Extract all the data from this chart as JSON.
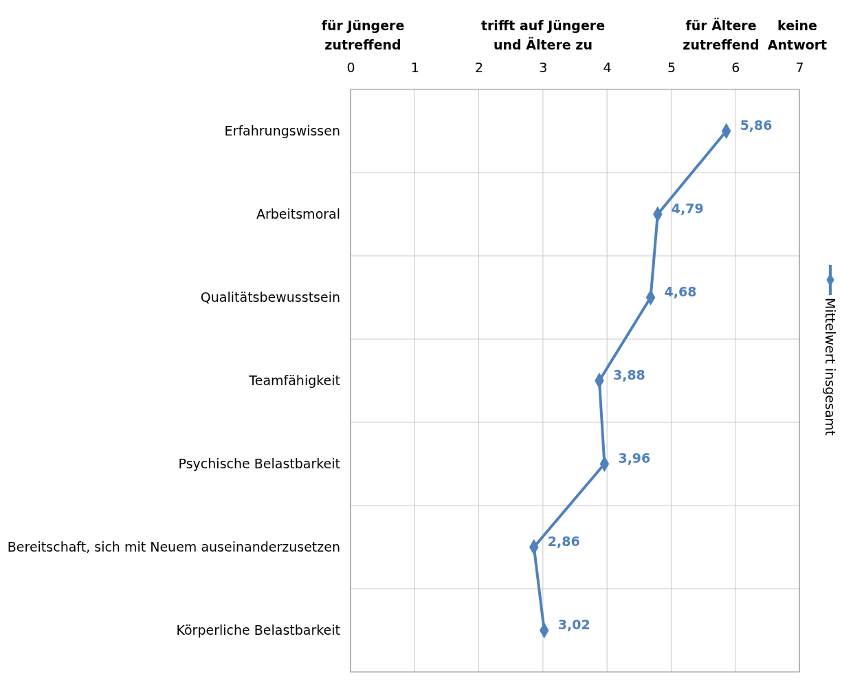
{
  "chart_data": {
    "type": "line",
    "orientation": "horizontal",
    "categories": [
      "Erfahrungswissen",
      "Arbeitsmoral",
      "Qualitätsbewusstsein",
      "Teamfähigkeit",
      "Psychische Belastbarkeit",
      "Bereitschaft, sich mit Neuem auseinanderzusetzen",
      "Körperliche Belastbarkeit"
    ],
    "series": [
      {
        "name": "Mittelwert insgesamt",
        "color": "#4f81bd",
        "values": [
          5.86,
          4.79,
          4.68,
          3.88,
          3.96,
          2.86,
          3.02
        ],
        "value_labels": [
          "5,86",
          "4,79",
          "4,68",
          "3,88",
          "3,96",
          "2,86",
          "3,02"
        ]
      }
    ],
    "xlim": [
      0,
      7
    ],
    "xticks": [
      0,
      1,
      2,
      3,
      4,
      5,
      6,
      7
    ],
    "annotations": [
      "für Jüngere zutreffend",
      "trifft auf Jüngere und Ältere zu",
      "für Ältere zutreffend",
      "keine Antwort"
    ],
    "grid": true,
    "legend": "right",
    "marker": "diamond",
    "line_style": "solid"
  }
}
